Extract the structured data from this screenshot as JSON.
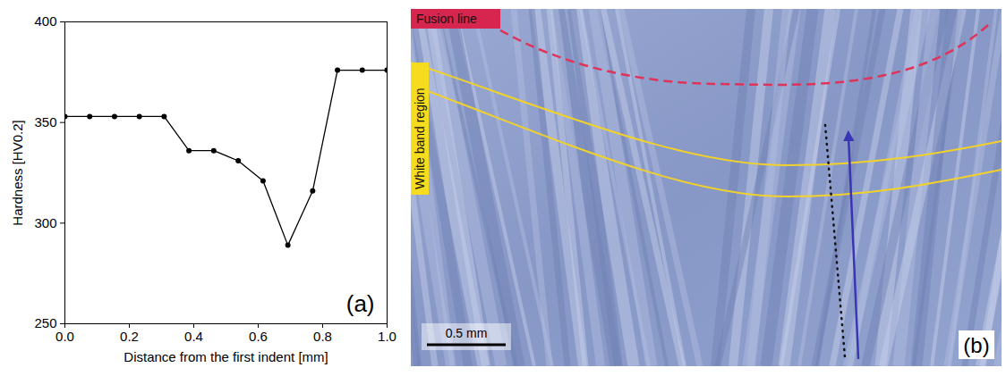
{
  "chart_data": {
    "type": "line",
    "x_label": "Distance from the first indent [mm]",
    "y_label": "Hardness [HV0.2]",
    "annotation": "(a)",
    "x": [
      0,
      0.077,
      0.154,
      0.231,
      0.308,
      0.385,
      0.462,
      0.538,
      0.615,
      0.692,
      0.769,
      0.846,
      0.923,
      1.0
    ],
    "values": [
      353,
      353,
      353,
      353,
      353,
      336,
      336,
      331,
      321,
      289,
      316,
      376,
      376,
      376
    ],
    "color": "#000000",
    "marker": "circle",
    "xlim": [
      0,
      1
    ],
    "xticks": [
      {
        "value": 0,
        "label": "0.0"
      },
      0.2,
      0.4,
      0.6,
      0.8,
      {
        "value": 1,
        "label": "1.0"
      }
    ],
    "ylim": [
      250,
      400
    ],
    "yticks": [
      250,
      300,
      350,
      400
    ],
    "grid": false
  },
  "panel_b": {
    "fusion_line_label": "Fusion line",
    "band_label": "White band region",
    "scale_bar": "0.5 mm",
    "panel_label": "(b)"
  }
}
